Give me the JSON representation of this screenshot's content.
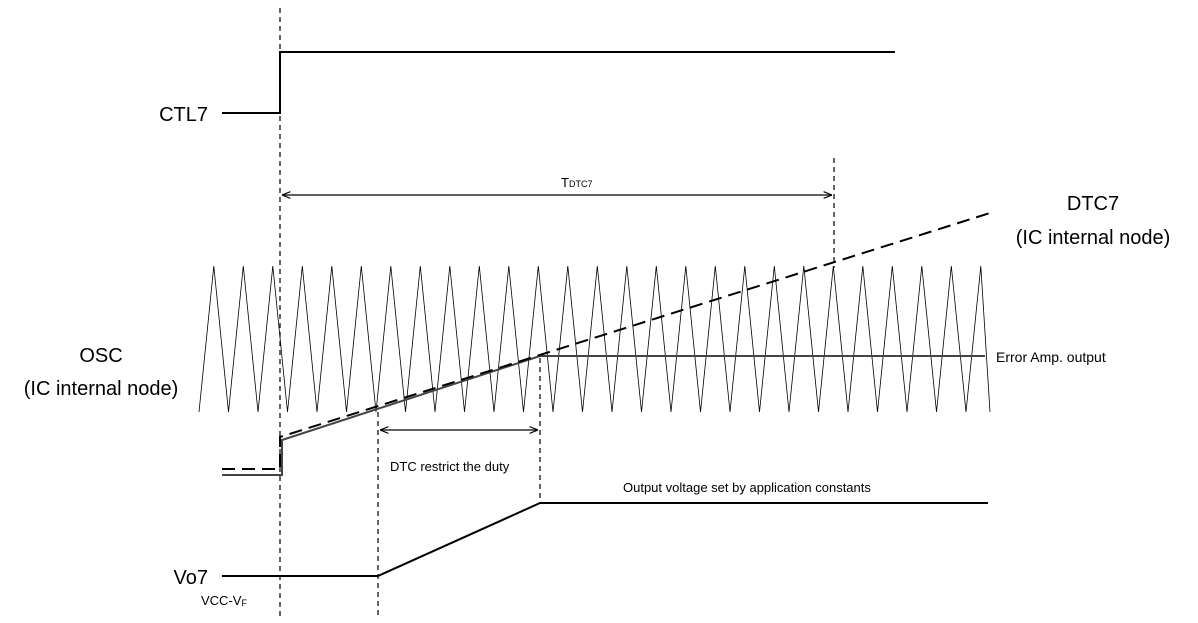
{
  "labels": {
    "ctl7": "CTL7",
    "tdtc7_main": "T",
    "tdtc7_sub": "DTC7",
    "dtc7": "DTC7",
    "dtc7_node": "(IC internal node)",
    "osc": "OSC",
    "osc_node": "(IC internal node)",
    "error_amp": "Error Amp. output",
    "dtc_restrict": "DTC restrict the duty",
    "output_voltage": "Output voltage set by application constants",
    "vo7": "Vo7",
    "vcc_vf_main": "VCC-V",
    "vcc_vf_sub": "F"
  },
  "colors": {
    "line": "#000000",
    "error_amp_line": "#555555",
    "background": "#ffffff"
  }
}
